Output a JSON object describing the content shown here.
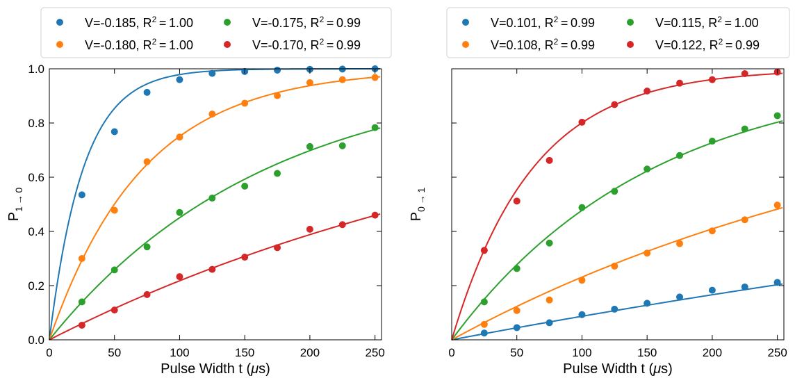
{
  "chart_data": [
    {
      "type": "scatter",
      "panel": "left",
      "xlabel": "Pulse Width t (μs)",
      "xlabel_main": "Pulse Width t (",
      "xlabel_unit": "μ",
      "xlabel_tail": "s)",
      "ylabel": "P_{1→0}",
      "ylabel_main": "P",
      "ylabel_sub": "1 → 0",
      "xlim": [
        0,
        255
      ],
      "ylim": [
        0,
        1
      ],
      "x_ticks": [
        0,
        50,
        100,
        150,
        200,
        250
      ],
      "y_ticks": [
        0.0,
        0.2,
        0.4,
        0.6,
        0.8,
        1.0
      ],
      "x_tick_labels": [
        "0",
        "50",
        "100",
        "150",
        "200",
        "250"
      ],
      "y_tick_labels": [
        "0.0",
        "0.2",
        "0.4",
        "0.6",
        "0.8",
        "1.0"
      ],
      "legend_position": "top",
      "x": [
        25,
        50,
        75,
        100,
        125,
        150,
        175,
        200,
        225,
        250
      ],
      "series": [
        {
          "name": "V=-0.185, R²=1.00",
          "label_main": "V=-0.185, R",
          "r2": "1.00",
          "color": "#1f77b4",
          "tau": 26,
          "values": [
            0.535,
            0.768,
            0.913,
            0.96,
            0.983,
            0.99,
            0.995,
            0.998,
            0.999,
            1.0
          ]
        },
        {
          "name": "V=-0.180, R²=1.00",
          "label_main": "V=-0.180, R",
          "r2": "1.00",
          "color": "#ff7f0e",
          "tau": 72,
          "values": [
            0.3,
            0.478,
            0.657,
            0.748,
            0.833,
            0.873,
            0.901,
            0.949,
            0.96,
            0.968
          ]
        },
        {
          "name": "V=-0.175, R²=0.99",
          "label_main": "V=-0.175, R",
          "r2": "0.99",
          "color": "#2ca02c",
          "tau": 167,
          "values": [
            0.14,
            0.258,
            0.343,
            0.47,
            0.523,
            0.567,
            0.614,
            0.713,
            0.716,
            0.783
          ]
        },
        {
          "name": "V=-0.170, R²=0.99",
          "label_main": "V=-0.170, R",
          "r2": "0.99",
          "color": "#d62728",
          "tau": 407,
          "values": [
            0.054,
            0.11,
            0.167,
            0.233,
            0.26,
            0.305,
            0.34,
            0.408,
            0.425,
            0.46
          ]
        }
      ]
    },
    {
      "type": "scatter",
      "panel": "right",
      "xlabel": "Pulse Width t (μs)",
      "xlabel_main": "Pulse Width t (",
      "xlabel_unit": "μ",
      "xlabel_tail": "s)",
      "ylabel": "P_{0→1}",
      "ylabel_main": "P",
      "ylabel_sub": "0 → 1",
      "xlim": [
        0,
        255
      ],
      "ylim": [
        0,
        1
      ],
      "x_ticks": [
        0,
        50,
        100,
        150,
        200,
        250
      ],
      "y_ticks": [
        0.0,
        0.2,
        0.4,
        0.6,
        0.8,
        1.0
      ],
      "x_tick_labels": [
        "0",
        "50",
        "100",
        "150",
        "200",
        "250"
      ],
      "y_tick_labels": [],
      "legend_position": "top",
      "x": [
        25,
        50,
        75,
        100,
        125,
        150,
        175,
        200,
        225,
        250
      ],
      "series": [
        {
          "name": "V=0.101, R²=0.99",
          "label_main": "V=0.101, R",
          "r2": "0.99",
          "color": "#1f77b4",
          "tau": 1100,
          "values": [
            0.025,
            0.045,
            0.063,
            0.093,
            0.113,
            0.135,
            0.158,
            0.183,
            0.195,
            0.212
          ]
        },
        {
          "name": "V=0.108, R²=0.99",
          "label_main": "V=0.108, R",
          "r2": "0.99",
          "color": "#ff7f0e",
          "tau": 380,
          "values": [
            0.057,
            0.108,
            0.147,
            0.22,
            0.272,
            0.32,
            0.355,
            0.402,
            0.443,
            0.497
          ]
        },
        {
          "name": "V=0.115, R²=1.00",
          "label_main": "V=0.115, R",
          "r2": "1.00",
          "color": "#2ca02c",
          "tau": 154,
          "values": [
            0.14,
            0.263,
            0.357,
            0.488,
            0.548,
            0.63,
            0.68,
            0.733,
            0.778,
            0.827
          ]
        },
        {
          "name": "V=0.122, R²=0.99",
          "label_main": "V=0.122, R",
          "r2": "0.99",
          "color": "#d62728",
          "tau": 62,
          "values": [
            0.33,
            0.512,
            0.662,
            0.803,
            0.868,
            0.918,
            0.947,
            0.96,
            0.982,
            0.988
          ]
        }
      ]
    }
  ]
}
